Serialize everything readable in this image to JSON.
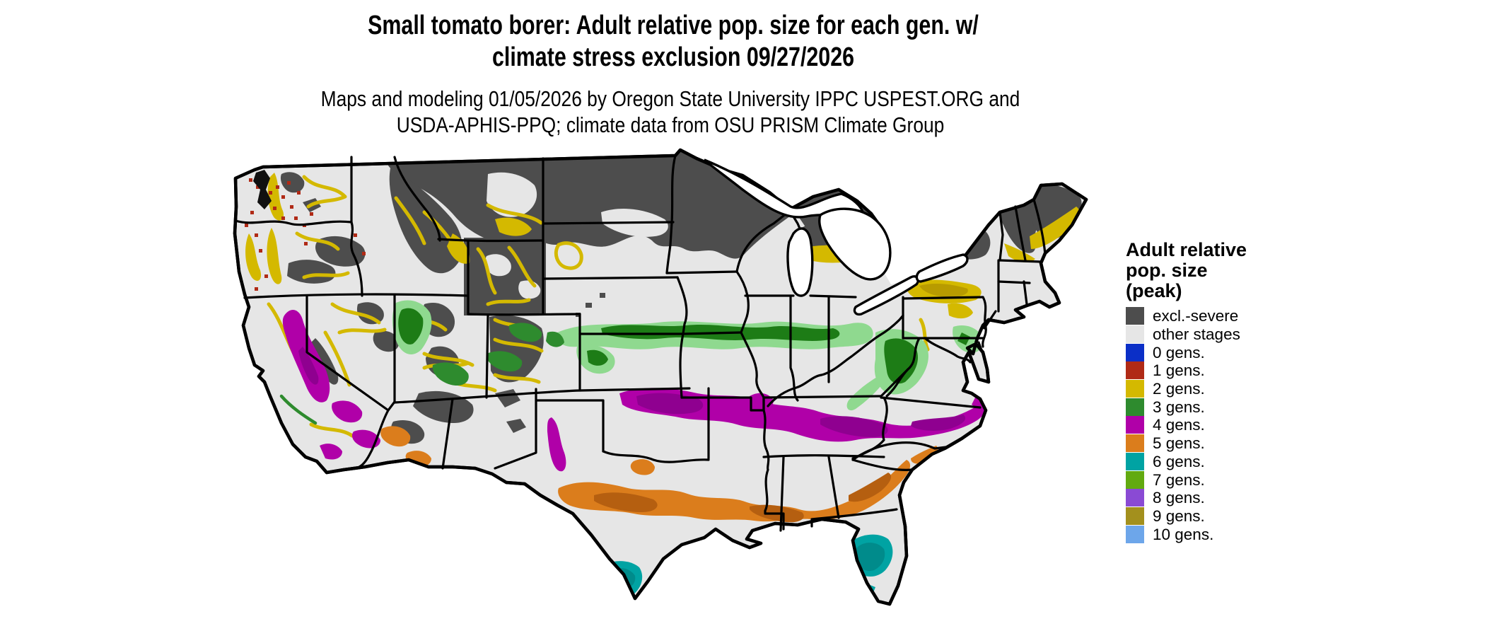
{
  "title": {
    "line1": "Small tomato borer: Adult relative pop. size for each gen. w/",
    "line2": "climate stress exclusion 09/27/2026"
  },
  "subtitle": {
    "line1": "Maps and modeling 01/05/2026 by Oregon State University IPPC USPEST.ORG and",
    "line2": "USDA-APHIS-PPQ; climate data from OSU PRISM Climate Group"
  },
  "legend": {
    "title_lines": [
      "Adult relative",
      "pop. size",
      "(peak)"
    ],
    "items": [
      {
        "label": "excl.-severe",
        "color": "#4d4d4d"
      },
      {
        "label": "other stages",
        "color": "#e6e6e6"
      },
      {
        "label": "0 gens.",
        "color": "#0b2fc7"
      },
      {
        "label": "1 gens.",
        "color": "#b02a16"
      },
      {
        "label": "2 gens.",
        "color": "#d4b900"
      },
      {
        "label": "3 gens.",
        "color": "#2e8b2e"
      },
      {
        "label": "4 gens.",
        "color": "#b000a8"
      },
      {
        "label": "5 gens.",
        "color": "#db7d1c"
      },
      {
        "label": "6 gens.",
        "color": "#00a3a3"
      },
      {
        "label": "7 gens.",
        "color": "#62aa10"
      },
      {
        "label": "8 gens.",
        "color": "#8a4ad4"
      },
      {
        "label": "9 gens.",
        "color": "#a3901d"
      },
      {
        "label": "10 gens.",
        "color": "#6da6ea"
      }
    ]
  },
  "map": {
    "region": "Contiguous United States",
    "model_date": "09/27/2026"
  }
}
